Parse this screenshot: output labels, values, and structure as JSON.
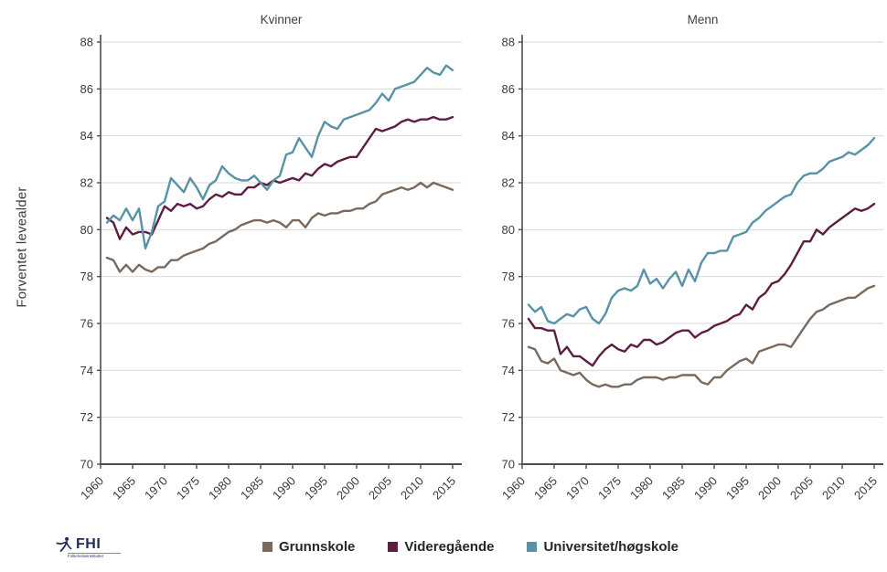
{
  "figure": {
    "ylabel": "Forventet levealder",
    "legend_position": "bottom",
    "legend": [
      {
        "name": "legend-item-grunnskole",
        "label": "Grunnskole",
        "color": "#79695E"
      },
      {
        "name": "legend-item-videregaende",
        "label": "Videregående",
        "color": "#5E1D42"
      },
      {
        "name": "legend-item-universitet",
        "label": "Universitet/høgskole",
        "color": "#5792A7"
      }
    ],
    "logo": {
      "text": "FHI",
      "subtext": "Folkehelseinstituttet",
      "color": "#1e2b5c"
    }
  },
  "chart_data": [
    {
      "type": "line",
      "title": "Kvinner",
      "xlabel": "",
      "ylabel": "Forventet levealder",
      "xlim": [
        1960,
        2016
      ],
      "ylim": [
        70,
        88
      ],
      "ytick_step": 2,
      "xticks": [
        1960,
        1965,
        1970,
        1975,
        1980,
        1985,
        1990,
        1995,
        2000,
        2005,
        2010,
        2015
      ],
      "x_tick_rotation": -45,
      "grid": "horizontal",
      "years_start": 1961,
      "years_end": 2015,
      "series": [
        {
          "name": "Grunnskole",
          "color": "#79695E",
          "values": [
            78.8,
            78.7,
            78.2,
            78.5,
            78.2,
            78.5,
            78.3,
            78.2,
            78.4,
            78.4,
            78.7,
            78.7,
            78.9,
            79.0,
            79.1,
            79.2,
            79.4,
            79.5,
            79.7,
            79.9,
            80.0,
            80.2,
            80.3,
            80.4,
            80.4,
            80.3,
            80.4,
            80.3,
            80.1,
            80.4,
            80.4,
            80.1,
            80.5,
            80.7,
            80.6,
            80.7,
            80.7,
            80.8,
            80.8,
            80.9,
            80.9,
            81.1,
            81.2,
            81.5,
            81.6,
            81.7,
            81.8,
            81.7,
            81.8,
            82.0,
            81.8,
            82.0,
            81.9,
            81.8,
            81.7
          ]
        },
        {
          "name": "Videregående",
          "color": "#5E1D42",
          "values": [
            80.5,
            80.3,
            79.6,
            80.1,
            79.8,
            79.9,
            79.9,
            79.8,
            80.4,
            81.0,
            80.8,
            81.1,
            81.0,
            81.1,
            80.9,
            81.0,
            81.3,
            81.5,
            81.4,
            81.6,
            81.5,
            81.5,
            81.8,
            81.8,
            82.0,
            81.9,
            82.1,
            82.0,
            82.1,
            82.2,
            82.1,
            82.4,
            82.3,
            82.6,
            82.8,
            82.7,
            82.9,
            83.0,
            83.1,
            83.1,
            83.5,
            83.9,
            84.3,
            84.2,
            84.3,
            84.4,
            84.6,
            84.7,
            84.6,
            84.7,
            84.7,
            84.8,
            84.7,
            84.7,
            84.8
          ]
        },
        {
          "name": "Universitet/høgskole",
          "color": "#5792A7",
          "values": [
            80.3,
            80.6,
            80.4,
            80.9,
            80.4,
            80.9,
            79.2,
            79.9,
            81.0,
            81.2,
            82.2,
            81.9,
            81.6,
            82.2,
            81.8,
            81.3,
            81.9,
            82.1,
            82.7,
            82.4,
            82.2,
            82.1,
            82.1,
            82.3,
            82.0,
            81.7,
            82.1,
            82.3,
            83.2,
            83.3,
            83.9,
            83.5,
            83.1,
            84.0,
            84.6,
            84.4,
            84.3,
            84.7,
            84.8,
            84.9,
            85.0,
            85.1,
            85.4,
            85.8,
            85.5,
            86.0,
            86.1,
            86.2,
            86.3,
            86.6,
            86.9,
            86.7,
            86.6,
            87.0,
            86.8
          ]
        }
      ]
    },
    {
      "type": "line",
      "title": "Menn",
      "xlabel": "",
      "ylabel": "Forventet levealder",
      "xlim": [
        1960,
        2016
      ],
      "ylim": [
        70,
        88
      ],
      "ytick_step": 2,
      "xticks": [
        1960,
        1965,
        1970,
        1975,
        1980,
        1985,
        1990,
        1995,
        2000,
        2005,
        2010,
        2015
      ],
      "x_tick_rotation": -45,
      "grid": "horizontal",
      "years_start": 1961,
      "years_end": 2015,
      "series": [
        {
          "name": "Grunnskole",
          "color": "#79695E",
          "values": [
            75.0,
            74.9,
            74.4,
            74.3,
            74.5,
            74.0,
            73.9,
            73.8,
            73.9,
            73.6,
            73.4,
            73.3,
            73.4,
            73.3,
            73.3,
            73.4,
            73.4,
            73.6,
            73.7,
            73.7,
            73.7,
            73.6,
            73.7,
            73.7,
            73.8,
            73.8,
            73.8,
            73.5,
            73.4,
            73.7,
            73.7,
            74.0,
            74.2,
            74.4,
            74.5,
            74.3,
            74.8,
            74.9,
            75.0,
            75.1,
            75.1,
            75.0,
            75.4,
            75.8,
            76.2,
            76.5,
            76.6,
            76.8,
            76.9,
            77.0,
            77.1,
            77.1,
            77.3,
            77.5,
            77.6
          ]
        },
        {
          "name": "Videregående",
          "color": "#5E1D42",
          "values": [
            76.2,
            75.8,
            75.8,
            75.7,
            75.7,
            74.7,
            75.0,
            74.6,
            74.6,
            74.4,
            74.2,
            74.6,
            74.9,
            75.1,
            74.9,
            74.8,
            75.1,
            75.0,
            75.3,
            75.3,
            75.1,
            75.2,
            75.4,
            75.6,
            75.7,
            75.7,
            75.4,
            75.6,
            75.7,
            75.9,
            76.0,
            76.1,
            76.3,
            76.4,
            76.8,
            76.6,
            77.1,
            77.3,
            77.7,
            77.8,
            78.1,
            78.5,
            79.0,
            79.5,
            79.5,
            80.0,
            79.8,
            80.1,
            80.3,
            80.5,
            80.7,
            80.9,
            80.8,
            80.9,
            81.1
          ]
        },
        {
          "name": "Universitet/høgskole",
          "color": "#5792A7",
          "values": [
            76.8,
            76.5,
            76.7,
            76.1,
            76.0,
            76.2,
            76.4,
            76.3,
            76.6,
            76.7,
            76.2,
            76.0,
            76.4,
            77.1,
            77.4,
            77.5,
            77.4,
            77.6,
            78.3,
            77.7,
            77.9,
            77.5,
            77.9,
            78.2,
            77.6,
            78.3,
            77.8,
            78.6,
            79.0,
            79.0,
            79.1,
            79.1,
            79.7,
            79.8,
            79.9,
            80.3,
            80.5,
            80.8,
            81.0,
            81.2,
            81.4,
            81.5,
            82.0,
            82.3,
            82.4,
            82.4,
            82.6,
            82.9,
            83.0,
            83.1,
            83.3,
            83.2,
            83.4,
            83.6,
            83.9
          ]
        }
      ]
    }
  ]
}
